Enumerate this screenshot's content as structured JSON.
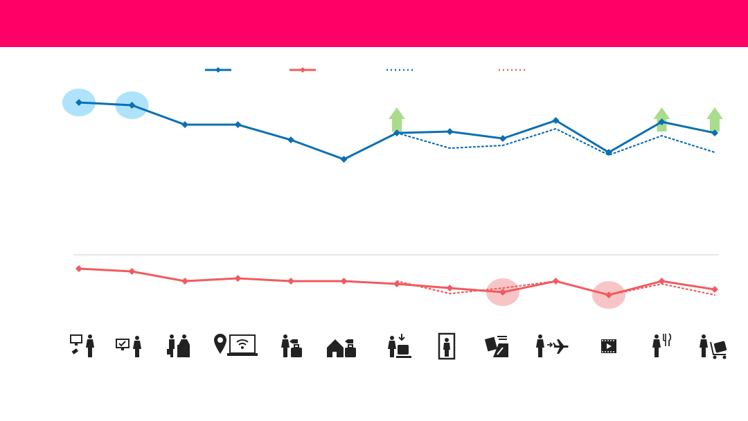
{
  "header": {
    "title": "",
    "color": "#ff0066"
  },
  "legend": [
    {
      "key": "a",
      "label": "",
      "style": "solid-diamond",
      "color": "#0a6fb3"
    },
    {
      "key": "b",
      "label": "",
      "style": "solid-diamond",
      "color": "#f25a5f"
    },
    {
      "key": "c",
      "label": "",
      "style": "dotted",
      "color": "#0a6fb3"
    },
    {
      "key": "d",
      "label": "",
      "style": "dotted",
      "color": "#f25a5f"
    }
  ],
  "chart_data": {
    "type": "line",
    "x": [
      1,
      2,
      3,
      4,
      5,
      6,
      7,
      8,
      9,
      10,
      11,
      12,
      13
    ],
    "ylim": [
      0,
      100
    ],
    "grid": false,
    "legend_position": "top",
    "reference_line": {
      "y": 33.0,
      "color": "#cccccc"
    },
    "series": [
      {
        "style": "solid",
        "marker": "diamond",
        "color": "#0a6fb3",
        "values": [
          88,
          87,
          80,
          80,
          74.5,
          67.5,
          77,
          77.5,
          75,
          81.5,
          70,
          81,
          77
        ]
      },
      {
        "style": "dotted",
        "color": "#0a6fb3",
        "values": [
          null,
          null,
          null,
          null,
          null,
          null,
          77,
          71.5,
          72.5,
          78.5,
          69,
          76,
          70
        ]
      },
      {
        "style": "solid",
        "marker": "diamond",
        "color": "#f25a5f",
        "values": [
          28,
          27,
          23.5,
          24.5,
          23.5,
          23.5,
          22.5,
          21,
          19.5,
          23.5,
          18.5,
          23.5,
          20.5
        ]
      },
      {
        "style": "dotted",
        "color": "#f25a5f",
        "values": [
          null,
          null,
          null,
          null,
          null,
          null,
          23.5,
          19,
          21,
          23.5,
          18.5,
          22.5,
          18.5
        ]
      }
    ],
    "highlights": [
      {
        "series": 0,
        "index": 0,
        "color": "#aee3fb"
      },
      {
        "series": 0,
        "index": 1,
        "color": "#aee3fb"
      },
      {
        "series": 2,
        "index": 8,
        "color": "#f8c5c7"
      },
      {
        "series": 2,
        "index": 10,
        "color": "#f8c5c7"
      }
    ],
    "up_arrows": {
      "indices": [
        7,
        12,
        13
      ],
      "color": "#a9dc8c"
    }
  },
  "icons": [
    "self-checkin-kiosk-icon",
    "online-checkin-icon",
    "check-in-desk-icon",
    "location-wifi-icon",
    "baggage-drop-icon",
    "home-baggage-icon",
    "baggage-claim-icon",
    "security-scanner-icon",
    "passport-control-icon",
    "boarding-icon",
    "inflight-entertainment-icon",
    "dining-icon",
    "baggage-trolley-icon"
  ]
}
